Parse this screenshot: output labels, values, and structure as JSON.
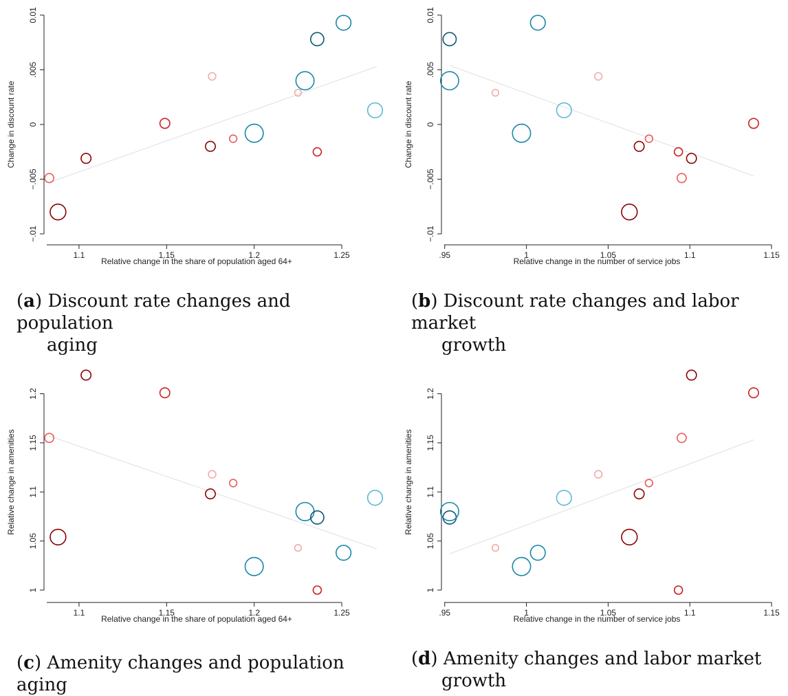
{
  "colors": {
    "dark_red": "#8b0000",
    "red": "#cc2222",
    "light_red": "#e85c5c",
    "pale_red": "#f2aaaa",
    "dark_blue": "#0c5574",
    "blue": "#1887a8",
    "light_blue": "#5cb8d6",
    "fit_line": "#e4e4e4",
    "axis": "#222222"
  },
  "chart_data": [
    {
      "id": "a",
      "type": "scatter",
      "caption_tag": "a",
      "caption_line1": "Discount rate changes and population",
      "caption_line2": "aging",
      "xlabel": "Relative change in the share of population aged 64+",
      "ylabel": "Change in discount rate",
      "xlim": [
        1.08,
        1.27
      ],
      "ylim": [
        -0.0105,
        0.0105
      ],
      "xticks": [
        {
          "v": 1.1,
          "label": "1.1"
        },
        {
          "v": 1.15,
          "label": "1.15"
        },
        {
          "v": 1.2,
          "label": "1.2"
        },
        {
          "v": 1.25,
          "label": "1.25"
        }
      ],
      "yticks": [
        {
          "v": -0.01,
          "label": "-.01"
        },
        {
          "v": -0.005,
          "label": "-.005"
        },
        {
          "v": 0,
          "label": "0"
        },
        {
          "v": 0.005,
          "label": ".005"
        },
        {
          "v": 0.01,
          "label": "0.01"
        }
      ],
      "fit": {
        "x": [
          1.083,
          1.27
        ],
        "y": [
          -0.0053,
          0.0053
        ]
      },
      "points": [
        {
          "x": 1.083,
          "y": -0.0049,
          "size": 1.1,
          "color": "light_red"
        },
        {
          "x": 1.088,
          "y": -0.008,
          "size": 1.9,
          "color": "dark_red"
        },
        {
          "x": 1.104,
          "y": -0.0031,
          "size": 1.2,
          "color": "dark_red"
        },
        {
          "x": 1.149,
          "y": 0.0001,
          "size": 1.2,
          "color": "red"
        },
        {
          "x": 1.176,
          "y": 0.0044,
          "size": 0.9,
          "color": "pale_red"
        },
        {
          "x": 1.175,
          "y": -0.002,
          "size": 1.2,
          "color": "dark_red"
        },
        {
          "x": 1.188,
          "y": -0.0013,
          "size": 0.9,
          "color": "light_red"
        },
        {
          "x": 1.2,
          "y": -0.0008,
          "size": 2.2,
          "color": "blue"
        },
        {
          "x": 1.225,
          "y": 0.0029,
          "size": 0.8,
          "color": "pale_red"
        },
        {
          "x": 1.229,
          "y": 0.004,
          "size": 2.2,
          "color": "blue"
        },
        {
          "x": 1.236,
          "y": 0.0078,
          "size": 1.6,
          "color": "dark_blue"
        },
        {
          "x": 1.236,
          "y": -0.0025,
          "size": 1.0,
          "color": "red"
        },
        {
          "x": 1.251,
          "y": 0.0093,
          "size": 1.8,
          "color": "blue"
        },
        {
          "x": 1.269,
          "y": 0.0013,
          "size": 1.8,
          "color": "light_blue"
        }
      ]
    },
    {
      "id": "b",
      "type": "scatter",
      "caption_tag": "b",
      "caption_line1": "Discount rate changes and labor market",
      "caption_line2": "growth",
      "xlabel": "Relative change in the number of service jobs",
      "ylabel": "Change in discount rate",
      "xlim": [
        0.948,
        1.155
      ],
      "ylim": [
        -0.0105,
        0.0105
      ],
      "xticks": [
        {
          "v": 0.95,
          "label": ".95"
        },
        {
          "v": 1.0,
          "label": "1"
        },
        {
          "v": 1.05,
          "label": "1.05"
        },
        {
          "v": 1.1,
          "label": "1.1"
        },
        {
          "v": 1.15,
          "label": "1.15"
        }
      ],
      "yticks": [
        {
          "v": -0.01,
          "label": "-.01"
        },
        {
          "v": -0.005,
          "label": "-.005"
        },
        {
          "v": 0,
          "label": "0"
        },
        {
          "v": 0.005,
          "label": ".005"
        },
        {
          "v": 0.01,
          "label": "0.01"
        }
      ],
      "fit": {
        "x": [
          0.953,
          1.139
        ],
        "y": [
          0.0054,
          -0.0047
        ]
      },
      "points": [
        {
          "x": 0.953,
          "y": 0.0078,
          "size": 1.6,
          "color": "dark_blue"
        },
        {
          "x": 0.953,
          "y": 0.004,
          "size": 2.2,
          "color": "blue"
        },
        {
          "x": 0.981,
          "y": 0.0029,
          "size": 0.8,
          "color": "pale_red"
        },
        {
          "x": 0.997,
          "y": -0.0008,
          "size": 2.2,
          "color": "blue"
        },
        {
          "x": 1.007,
          "y": 0.0093,
          "size": 1.8,
          "color": "blue"
        },
        {
          "x": 1.023,
          "y": 0.0013,
          "size": 1.8,
          "color": "light_blue"
        },
        {
          "x": 1.044,
          "y": 0.0044,
          "size": 0.9,
          "color": "pale_red"
        },
        {
          "x": 1.063,
          "y": -0.008,
          "size": 1.9,
          "color": "dark_red"
        },
        {
          "x": 1.069,
          "y": -0.002,
          "size": 1.2,
          "color": "dark_red"
        },
        {
          "x": 1.075,
          "y": -0.0013,
          "size": 0.9,
          "color": "light_red"
        },
        {
          "x": 1.093,
          "y": -0.0025,
          "size": 1.0,
          "color": "red"
        },
        {
          "x": 1.095,
          "y": -0.0049,
          "size": 1.1,
          "color": "light_red"
        },
        {
          "x": 1.101,
          "y": -0.0031,
          "size": 1.2,
          "color": "dark_red"
        },
        {
          "x": 1.139,
          "y": 0.0001,
          "size": 1.2,
          "color": "red"
        }
      ]
    },
    {
      "id": "c",
      "type": "scatter",
      "caption_tag": "c",
      "caption_line1": "Amenity changes and population aging",
      "caption_line2": "",
      "xlabel": "Relative change in the share of population aged 64+",
      "ylabel": "Relative change in amenities",
      "xlim": [
        1.08,
        1.27
      ],
      "ylim": [
        0.993,
        1.227
      ],
      "xticks": [
        {
          "v": 1.1,
          "label": "1.1"
        },
        {
          "v": 1.15,
          "label": "1.15"
        },
        {
          "v": 1.2,
          "label": "1.2"
        },
        {
          "v": 1.25,
          "label": "1.25"
        }
      ],
      "yticks": [
        {
          "v": 1.0,
          "label": "1"
        },
        {
          "v": 1.05,
          "label": "1.05"
        },
        {
          "v": 1.1,
          "label": "1.1"
        },
        {
          "v": 1.15,
          "label": "1.15"
        },
        {
          "v": 1.2,
          "label": "1.2"
        }
      ],
      "fit": {
        "x": [
          1.083,
          1.27
        ],
        "y": [
          1.157,
          1.042
        ]
      },
      "points": [
        {
          "x": 1.083,
          "y": 1.155,
          "size": 1.1,
          "color": "light_red"
        },
        {
          "x": 1.088,
          "y": 1.054,
          "size": 1.9,
          "color": "dark_red"
        },
        {
          "x": 1.104,
          "y": 1.219,
          "size": 1.2,
          "color": "dark_red"
        },
        {
          "x": 1.149,
          "y": 1.201,
          "size": 1.2,
          "color": "red"
        },
        {
          "x": 1.176,
          "y": 1.118,
          "size": 0.9,
          "color": "pale_red"
        },
        {
          "x": 1.175,
          "y": 1.098,
          "size": 1.2,
          "color": "dark_red"
        },
        {
          "x": 1.188,
          "y": 1.109,
          "size": 0.9,
          "color": "light_red"
        },
        {
          "x": 1.2,
          "y": 1.024,
          "size": 2.2,
          "color": "blue"
        },
        {
          "x": 1.225,
          "y": 1.043,
          "size": 0.8,
          "color": "pale_red"
        },
        {
          "x": 1.229,
          "y": 1.08,
          "size": 2.2,
          "color": "blue"
        },
        {
          "x": 1.236,
          "y": 1.074,
          "size": 1.6,
          "color": "dark_blue"
        },
        {
          "x": 1.236,
          "y": 1.0,
          "size": 1.0,
          "color": "red"
        },
        {
          "x": 1.251,
          "y": 1.038,
          "size": 1.8,
          "color": "blue"
        },
        {
          "x": 1.269,
          "y": 1.094,
          "size": 1.8,
          "color": "light_blue"
        }
      ]
    },
    {
      "id": "d",
      "type": "scatter",
      "caption_tag": "d",
      "caption_line1": "Amenity changes and labor market",
      "caption_line2": "growth",
      "xlabel": "Relative change in the number of service jobs",
      "ylabel": "Relative change in amenities",
      "xlim": [
        0.948,
        1.155
      ],
      "ylim": [
        0.993,
        1.227
      ],
      "xticks": [
        {
          "v": 0.95,
          "label": ".95"
        },
        {
          "v": 1.0,
          "label": "1"
        },
        {
          "v": 1.05,
          "label": "1.05"
        },
        {
          "v": 1.1,
          "label": "1.1"
        },
        {
          "v": 1.15,
          "label": "1.15"
        }
      ],
      "yticks": [
        {
          "v": 1.0,
          "label": "1"
        },
        {
          "v": 1.05,
          "label": "1.05"
        },
        {
          "v": 1.1,
          "label": "1.1"
        },
        {
          "v": 1.15,
          "label": "1.15"
        },
        {
          "v": 1.2,
          "label": "1.2"
        }
      ],
      "fit": {
        "x": [
          0.953,
          1.139
        ],
        "y": [
          1.037,
          1.153
        ]
      },
      "points": [
        {
          "x": 0.953,
          "y": 1.074,
          "size": 1.6,
          "color": "dark_blue"
        },
        {
          "x": 0.953,
          "y": 1.08,
          "size": 2.2,
          "color": "blue"
        },
        {
          "x": 0.981,
          "y": 1.043,
          "size": 0.8,
          "color": "pale_red"
        },
        {
          "x": 0.997,
          "y": 1.024,
          "size": 2.2,
          "color": "blue"
        },
        {
          "x": 1.007,
          "y": 1.038,
          "size": 1.8,
          "color": "blue"
        },
        {
          "x": 1.023,
          "y": 1.094,
          "size": 1.8,
          "color": "light_blue"
        },
        {
          "x": 1.044,
          "y": 1.118,
          "size": 0.9,
          "color": "pale_red"
        },
        {
          "x": 1.063,
          "y": 1.054,
          "size": 1.9,
          "color": "dark_red"
        },
        {
          "x": 1.069,
          "y": 1.098,
          "size": 1.2,
          "color": "dark_red"
        },
        {
          "x": 1.075,
          "y": 1.109,
          "size": 0.9,
          "color": "light_red"
        },
        {
          "x": 1.093,
          "y": 1.0,
          "size": 1.0,
          "color": "red"
        },
        {
          "x": 1.095,
          "y": 1.155,
          "size": 1.1,
          "color": "light_red"
        },
        {
          "x": 1.101,
          "y": 1.219,
          "size": 1.2,
          "color": "dark_red"
        },
        {
          "x": 1.139,
          "y": 1.201,
          "size": 1.2,
          "color": "red"
        }
      ]
    }
  ]
}
